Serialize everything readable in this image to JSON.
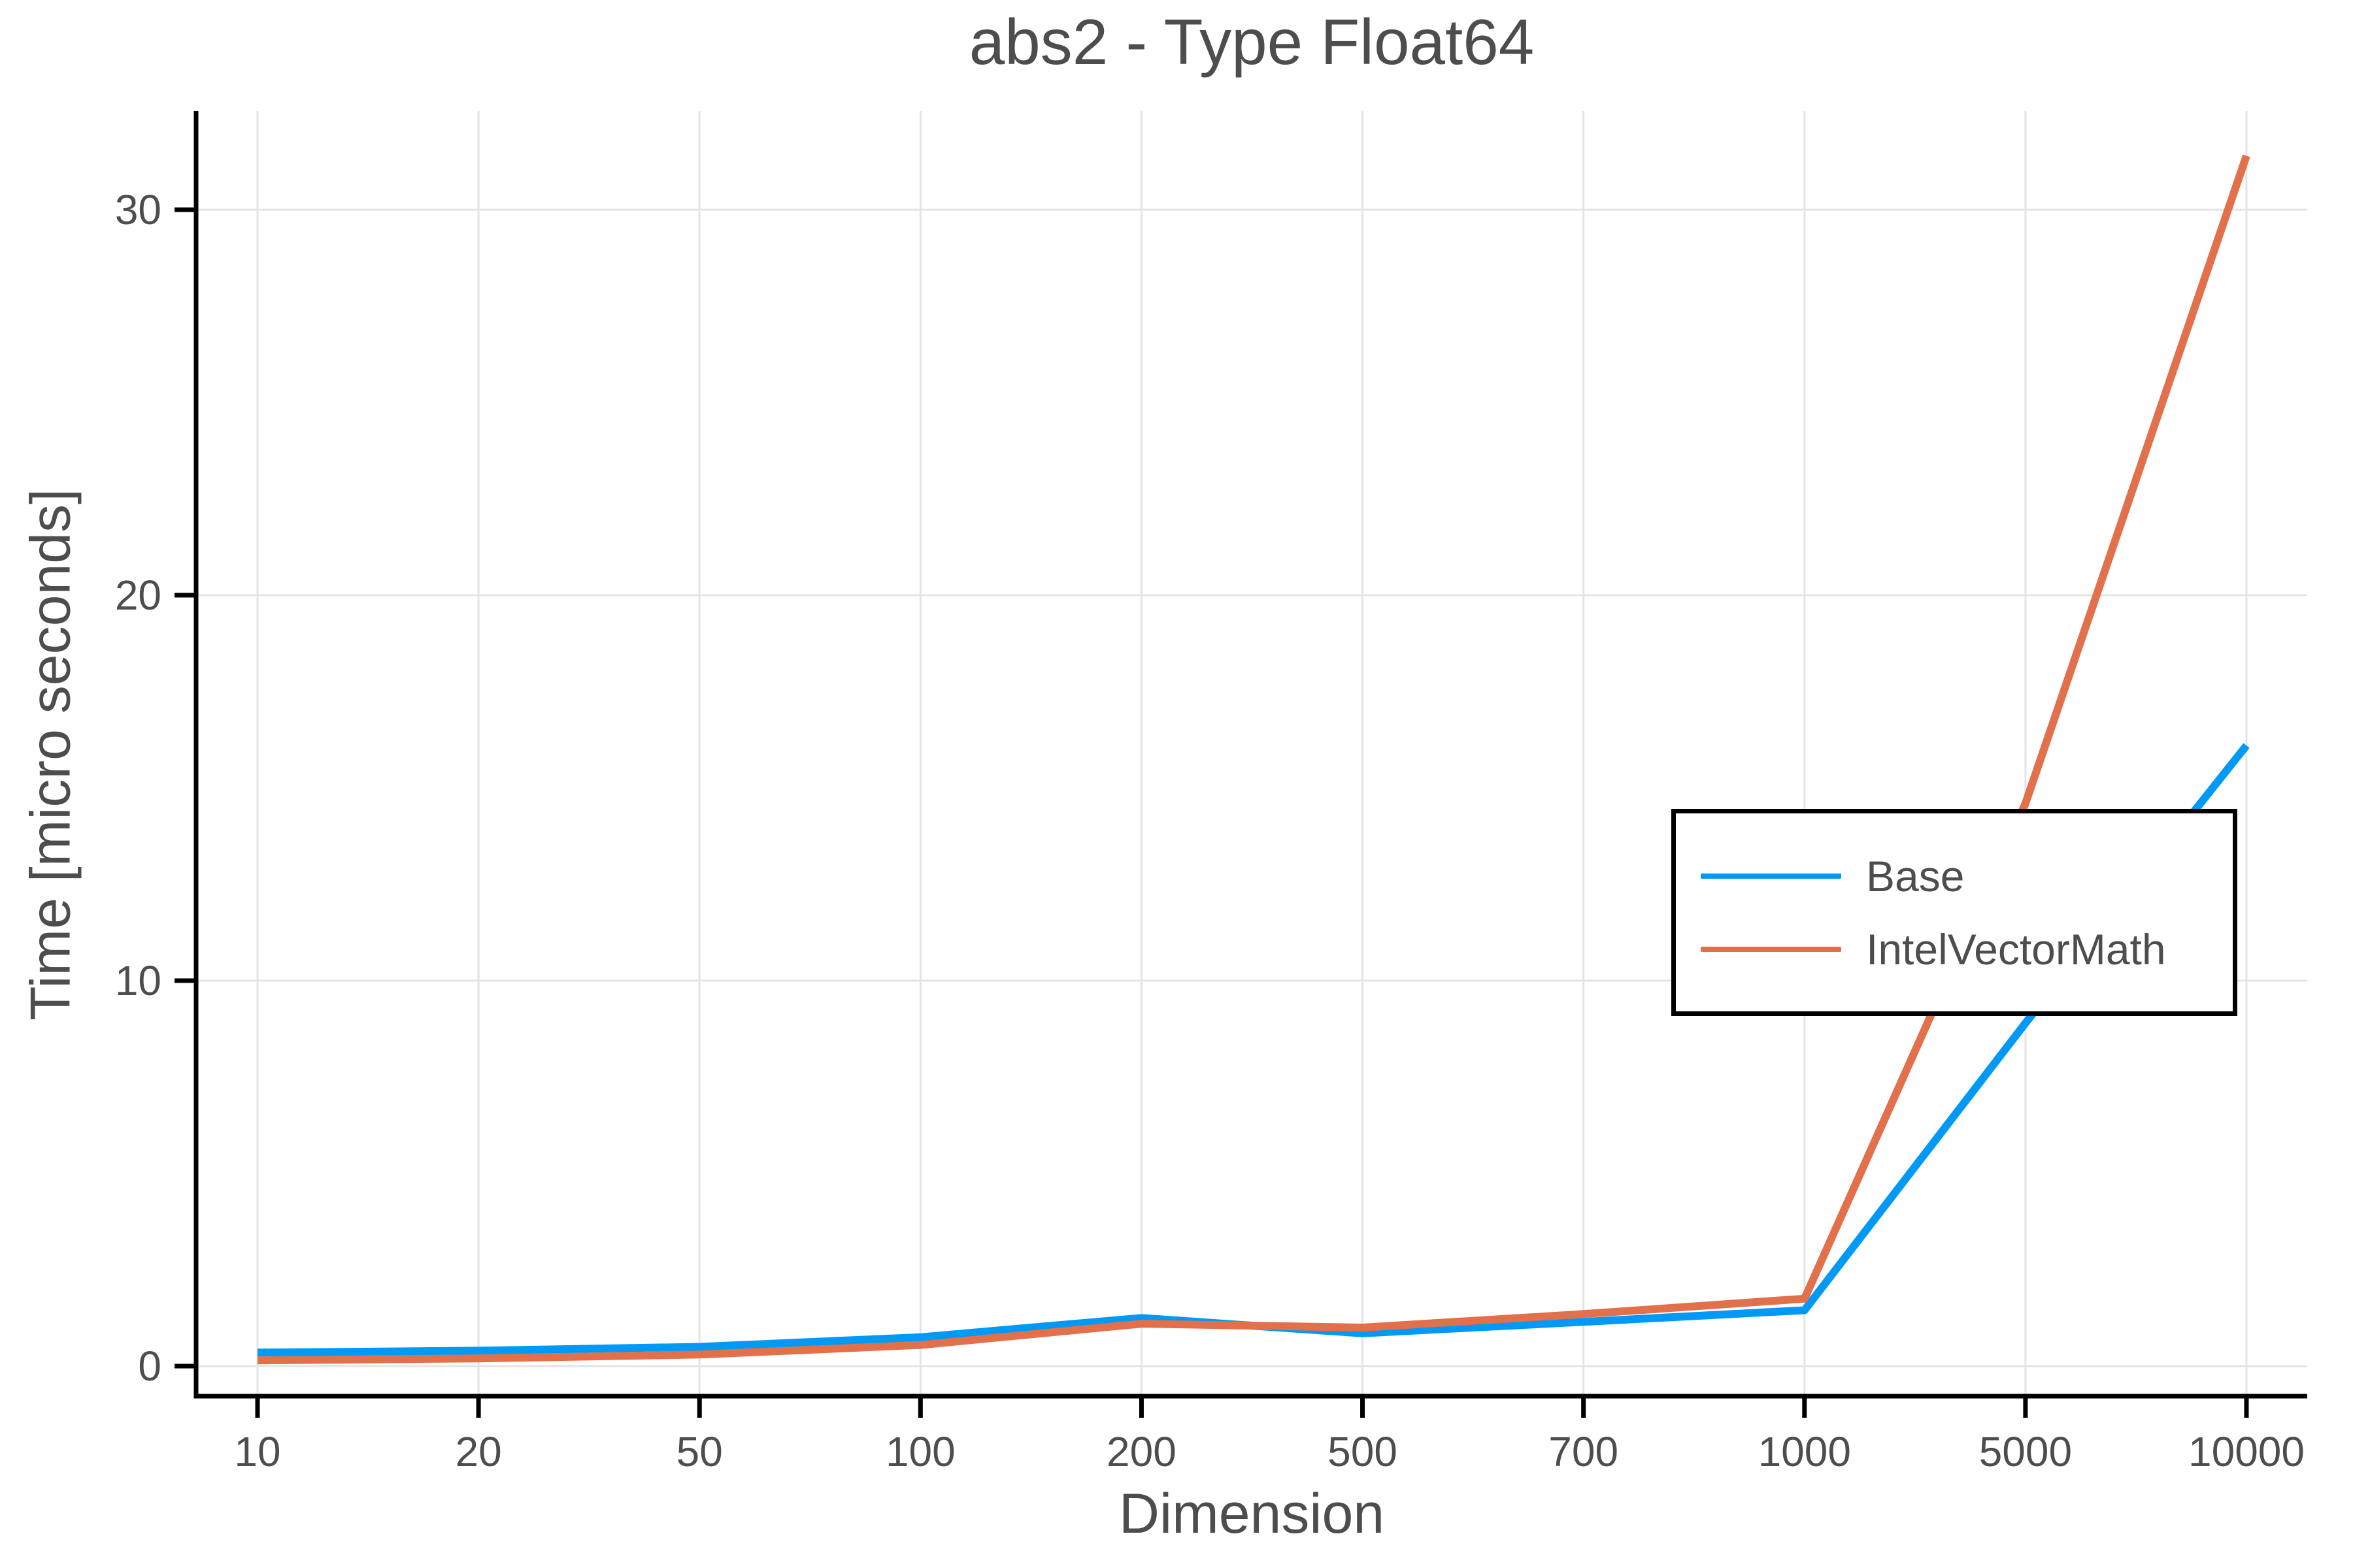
{
  "figure": {
    "background": "#FFFFFF",
    "text_color": "#4D4D4D",
    "grid_color": "#E4E4E4",
    "spine_color": "#000000"
  },
  "chart_data": {
    "type": "line",
    "title": "abs2 - Type Float64",
    "xlabel": "Dimension",
    "ylabel": "Time [micro seconds]",
    "x_categories": [
      "10",
      "20",
      "50",
      "100",
      "200",
      "500",
      "700",
      "1000",
      "5000",
      "10000"
    ],
    "y_ticks": [
      "0",
      "10",
      "20",
      "30"
    ],
    "ylim": [
      -0.78,
      32.56
    ],
    "grid": true,
    "legend_position": "right-center",
    "series": [
      {
        "name": "Base",
        "color": "#009AF6",
        "values": [
          0.35,
          0.4,
          0.5,
          0.75,
          1.25,
          0.85,
          1.15,
          1.45,
          8.9,
          16.1
        ]
      },
      {
        "name": "IntelVectorMath",
        "color": "#E1704B",
        "values": [
          0.15,
          0.2,
          0.3,
          0.55,
          1.1,
          1.0,
          1.35,
          1.75,
          14.6,
          31.4
        ]
      }
    ]
  }
}
